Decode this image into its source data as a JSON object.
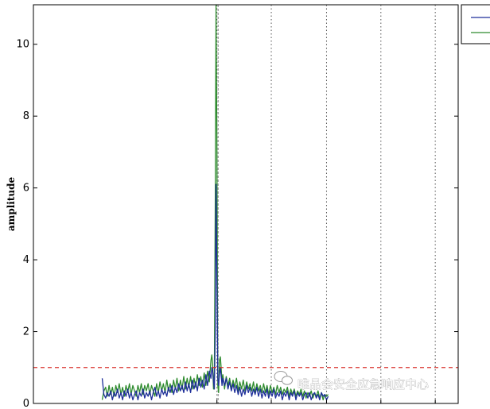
{
  "chart_data": {
    "type": "line",
    "title": "",
    "xlabel": "",
    "ylabel": "amplitude",
    "ylim": [
      0,
      11.1
    ],
    "xlim": [
      0,
      500
    ],
    "yticks": [
      0,
      2,
      4,
      6,
      8,
      10
    ],
    "ytick_labels": [
      "0",
      "2",
      "4",
      "6",
      "8",
      "10"
    ],
    "grid": "vertical dotted lines at x = 216, 280, 345, 409, 473",
    "vertical_markers": [
      216,
      280,
      345,
      409,
      473
    ],
    "threshold": 1.0,
    "legend_position": "top-right outside",
    "colors": {
      "series1": "#1f2f9a",
      "series2": "#2e8b2e",
      "threshold": "#d9312b",
      "grid": "#555555",
      "peak_marker": "#808080"
    },
    "series": [
      {
        "values": [
          [
            81,
            0.7
          ],
          [
            83,
            0.25
          ],
          [
            85,
            0.15
          ],
          [
            87,
            0.3
          ],
          [
            89,
            0.2
          ],
          [
            91,
            0.35
          ],
          [
            93,
            0.1
          ],
          [
            95,
            0.3
          ],
          [
            97,
            0.2
          ],
          [
            99,
            0.4
          ],
          [
            101,
            0.15
          ],
          [
            103,
            0.3
          ],
          [
            105,
            0.1
          ],
          [
            107,
            0.35
          ],
          [
            109,
            0.2
          ],
          [
            111,
            0.4
          ],
          [
            113,
            0.15
          ],
          [
            115,
            0.3
          ],
          [
            117,
            0.1
          ],
          [
            119,
            0.25
          ],
          [
            121,
            0.35
          ],
          [
            123,
            0.1
          ],
          [
            125,
            0.3
          ],
          [
            127,
            0.2
          ],
          [
            129,
            0.4
          ],
          [
            131,
            0.15
          ],
          [
            133,
            0.3
          ],
          [
            135,
            0.2
          ],
          [
            137,
            0.35
          ],
          [
            139,
            0.1
          ],
          [
            141,
            0.3
          ],
          [
            143,
            0.45
          ],
          [
            145,
            0.2
          ],
          [
            147,
            0.35
          ],
          [
            149,
            0.15
          ],
          [
            151,
            0.4
          ],
          [
            153,
            0.25
          ],
          [
            155,
            0.35
          ],
          [
            157,
            0.2
          ],
          [
            159,
            0.45
          ],
          [
            161,
            0.3
          ],
          [
            163,
            0.5
          ],
          [
            165,
            0.25
          ],
          [
            167,
            0.45
          ],
          [
            169,
            0.3
          ],
          [
            171,
            0.55
          ],
          [
            173,
            0.35
          ],
          [
            175,
            0.5
          ],
          [
            177,
            0.3
          ],
          [
            179,
            0.6
          ],
          [
            181,
            0.35
          ],
          [
            183,
            0.55
          ],
          [
            185,
            0.3
          ],
          [
            187,
            0.65
          ],
          [
            189,
            0.4
          ],
          [
            191,
            0.6
          ],
          [
            193,
            0.35
          ],
          [
            195,
            0.7
          ],
          [
            197,
            0.45
          ],
          [
            199,
            0.65
          ],
          [
            201,
            0.4
          ],
          [
            203,
            0.8
          ],
          [
            205,
            0.5
          ],
          [
            207,
            0.9
          ],
          [
            209,
            0.7
          ],
          [
            210,
            1.0
          ],
          [
            211,
            0.9
          ],
          [
            212,
            0.6
          ],
          [
            213,
            0.4
          ],
          [
            214,
            2.0
          ],
          [
            215,
            6.1
          ],
          [
            216,
            3.5
          ],
          [
            217,
            0.7
          ],
          [
            218,
            0.5
          ],
          [
            219,
            0.8
          ],
          [
            220,
            1.0
          ],
          [
            221,
            0.8
          ],
          [
            222,
            0.5
          ],
          [
            223,
            0.7
          ],
          [
            225,
            0.5
          ],
          [
            227,
            0.7
          ],
          [
            229,
            0.4
          ],
          [
            231,
            0.6
          ],
          [
            233,
            0.35
          ],
          [
            235,
            0.55
          ],
          [
            237,
            0.3
          ],
          [
            239,
            0.5
          ],
          [
            241,
            0.25
          ],
          [
            243,
            0.45
          ],
          [
            245,
            0.2
          ],
          [
            247,
            0.4
          ],
          [
            249,
            0.25
          ],
          [
            251,
            0.5
          ],
          [
            253,
            0.3
          ],
          [
            255,
            0.45
          ],
          [
            257,
            0.2
          ],
          [
            259,
            0.4
          ],
          [
            261,
            0.25
          ],
          [
            263,
            0.45
          ],
          [
            265,
            0.2
          ],
          [
            267,
            0.4
          ],
          [
            269,
            0.15
          ],
          [
            271,
            0.35
          ],
          [
            273,
            0.2
          ],
          [
            275,
            0.4
          ],
          [
            277,
            0.15
          ],
          [
            279,
            0.35
          ],
          [
            281,
            0.2
          ],
          [
            283,
            0.4
          ],
          [
            285,
            0.15
          ],
          [
            287,
            0.3
          ],
          [
            289,
            0.2
          ],
          [
            291,
            0.35
          ],
          [
            293,
            0.1
          ],
          [
            295,
            0.3
          ],
          [
            297,
            0.2
          ],
          [
            299,
            0.35
          ],
          [
            301,
            0.1
          ],
          [
            303,
            0.3
          ],
          [
            305,
            0.2
          ],
          [
            307,
            0.35
          ],
          [
            309,
            0.1
          ],
          [
            311,
            0.3
          ],
          [
            313,
            0.2
          ],
          [
            315,
            0.3
          ],
          [
            317,
            0.1
          ],
          [
            319,
            0.25
          ],
          [
            321,
            0.3
          ],
          [
            323,
            0.15
          ],
          [
            325,
            0.3
          ],
          [
            327,
            0.1
          ],
          [
            329,
            0.25
          ],
          [
            331,
            0.3
          ],
          [
            333,
            0.15
          ],
          [
            335,
            0.25
          ],
          [
            337,
            0.1
          ],
          [
            339,
            0.3
          ],
          [
            341,
            0.2
          ],
          [
            343,
            0.25
          ],
          [
            345,
            0.1
          ],
          [
            347,
            0.2
          ]
        ]
      },
      {
        "values": [
          [
            81,
            0.1
          ],
          [
            83,
            0.35
          ],
          [
            85,
            0.45
          ],
          [
            87,
            0.2
          ],
          [
            89,
            0.5
          ],
          [
            91,
            0.25
          ],
          [
            93,
            0.45
          ],
          [
            95,
            0.2
          ],
          [
            97,
            0.5
          ],
          [
            99,
            0.3
          ],
          [
            101,
            0.55
          ],
          [
            103,
            0.25
          ],
          [
            105,
            0.45
          ],
          [
            107,
            0.2
          ],
          [
            109,
            0.5
          ],
          [
            111,
            0.3
          ],
          [
            113,
            0.55
          ],
          [
            115,
            0.25
          ],
          [
            117,
            0.5
          ],
          [
            119,
            0.35
          ],
          [
            121,
            0.2
          ],
          [
            123,
            0.5
          ],
          [
            125,
            0.3
          ],
          [
            127,
            0.55
          ],
          [
            129,
            0.25
          ],
          [
            131,
            0.5
          ],
          [
            133,
            0.35
          ],
          [
            135,
            0.55
          ],
          [
            137,
            0.25
          ],
          [
            139,
            0.5
          ],
          [
            141,
            0.35
          ],
          [
            143,
            0.2
          ],
          [
            145,
            0.55
          ],
          [
            147,
            0.3
          ],
          [
            149,
            0.6
          ],
          [
            151,
            0.35
          ],
          [
            153,
            0.55
          ],
          [
            155,
            0.3
          ],
          [
            157,
            0.65
          ],
          [
            159,
            0.35
          ],
          [
            161,
            0.55
          ],
          [
            163,
            0.3
          ],
          [
            165,
            0.65
          ],
          [
            167,
            0.4
          ],
          [
            169,
            0.7
          ],
          [
            171,
            0.35
          ],
          [
            173,
            0.65
          ],
          [
            175,
            0.4
          ],
          [
            177,
            0.75
          ],
          [
            179,
            0.4
          ],
          [
            181,
            0.7
          ],
          [
            183,
            0.45
          ],
          [
            185,
            0.75
          ],
          [
            187,
            0.4
          ],
          [
            189,
            0.7
          ],
          [
            191,
            0.45
          ],
          [
            193,
            0.8
          ],
          [
            195,
            0.5
          ],
          [
            197,
            0.75
          ],
          [
            199,
            0.45
          ],
          [
            201,
            0.85
          ],
          [
            203,
            0.5
          ],
          [
            205,
            0.9
          ],
          [
            207,
            0.6
          ],
          [
            209,
            1.2
          ],
          [
            210,
            1.35
          ],
          [
            211,
            1.1
          ],
          [
            212,
            0.4
          ],
          [
            213,
            0.9
          ],
          [
            214,
            5.5
          ],
          [
            215,
            11.1
          ],
          [
            216,
            7.0
          ],
          [
            217,
            0.5
          ],
          [
            218,
            0.3
          ],
          [
            219,
            1.2
          ],
          [
            220,
            1.3
          ],
          [
            221,
            1.0
          ],
          [
            222,
            0.6
          ],
          [
            223,
            0.8
          ],
          [
            225,
            0.4
          ],
          [
            227,
            0.75
          ],
          [
            229,
            0.5
          ],
          [
            231,
            0.7
          ],
          [
            233,
            0.4
          ],
          [
            235,
            0.65
          ],
          [
            237,
            0.45
          ],
          [
            239,
            0.7
          ],
          [
            241,
            0.35
          ],
          [
            243,
            0.6
          ],
          [
            245,
            0.4
          ],
          [
            247,
            0.65
          ],
          [
            249,
            0.35
          ],
          [
            251,
            0.6
          ],
          [
            253,
            0.4
          ],
          [
            255,
            0.55
          ],
          [
            257,
            0.35
          ],
          [
            259,
            0.6
          ],
          [
            261,
            0.3
          ],
          [
            263,
            0.55
          ],
          [
            265,
            0.35
          ],
          [
            267,
            0.5
          ],
          [
            269,
            0.3
          ],
          [
            271,
            0.55
          ],
          [
            273,
            0.3
          ],
          [
            275,
            0.5
          ],
          [
            277,
            0.25
          ],
          [
            279,
            0.5
          ],
          [
            281,
            0.3
          ],
          [
            283,
            0.45
          ],
          [
            285,
            0.25
          ],
          [
            287,
            0.5
          ],
          [
            289,
            0.3
          ],
          [
            291,
            0.45
          ],
          [
            293,
            0.25
          ],
          [
            295,
            0.4
          ],
          [
            297,
            0.3
          ],
          [
            299,
            0.45
          ],
          [
            301,
            0.2
          ],
          [
            303,
            0.4
          ],
          [
            305,
            0.25
          ],
          [
            307,
            0.4
          ],
          [
            309,
            0.2
          ],
          [
            311,
            0.35
          ],
          [
            313,
            0.25
          ],
          [
            315,
            0.4
          ],
          [
            317,
            0.2
          ],
          [
            319,
            0.35
          ],
          [
            321,
            0.15
          ],
          [
            323,
            0.3
          ],
          [
            325,
            0.2
          ],
          [
            327,
            0.35
          ],
          [
            329,
            0.15
          ],
          [
            331,
            0.3
          ],
          [
            333,
            0.2
          ],
          [
            335,
            0.35
          ],
          [
            337,
            0.15
          ],
          [
            339,
            0.3
          ],
          [
            341,
            0.1
          ],
          [
            343,
            0.25
          ],
          [
            345,
            0.2
          ],
          [
            347,
            0.25
          ]
        ]
      }
    ]
  },
  "watermark": "唯品会安全应急响应中心"
}
